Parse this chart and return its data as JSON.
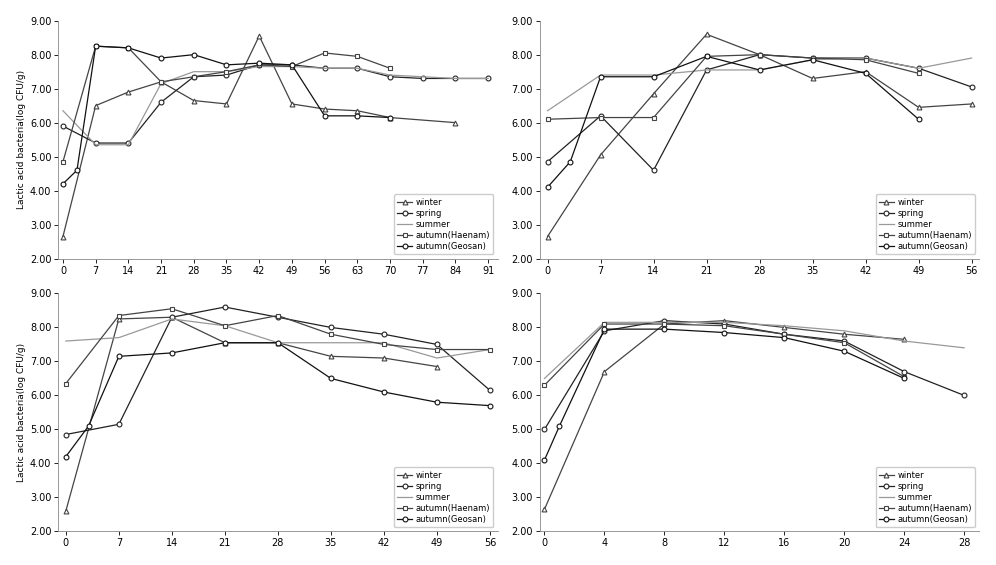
{
  "plots": [
    {
      "row": 0,
      "col": 0,
      "xticks": [
        0,
        7,
        14,
        21,
        28,
        35,
        42,
        49,
        56,
        63,
        70,
        77,
        84,
        91
      ],
      "xlim": [
        -1,
        93
      ],
      "ylim": [
        2.0,
        9.0
      ],
      "yticks": [
        2.0,
        3.0,
        4.0,
        5.0,
        6.0,
        7.0,
        8.0,
        9.0
      ],
      "series": [
        {
          "label": "winter",
          "marker": "^",
          "color": "#444444",
          "x": [
            0,
            7,
            14,
            21,
            28,
            35,
            42,
            49,
            56,
            63,
            70,
            84
          ],
          "y": [
            2.65,
            6.5,
            6.9,
            7.2,
            6.65,
            6.55,
            8.55,
            6.55,
            6.4,
            6.35,
            6.15,
            6.0
          ]
        },
        {
          "label": "spring",
          "marker": "o",
          "color": "#222222",
          "x": [
            0,
            7,
            14,
            21,
            28,
            35,
            42,
            49,
            56,
            63,
            70,
            77,
            84,
            91
          ],
          "y": [
            5.9,
            5.4,
            5.4,
            6.6,
            7.35,
            7.4,
            7.7,
            7.7,
            7.6,
            7.6,
            7.35,
            7.3,
            7.3,
            7.3
          ]
        },
        {
          "label": "summer",
          "marker": "",
          "color": "#999999",
          "x": [
            0,
            7,
            14,
            21,
            28,
            35,
            42,
            49,
            56,
            63,
            70,
            77,
            84,
            91
          ],
          "y": [
            6.35,
            5.35,
            5.35,
            7.15,
            7.5,
            7.5,
            7.65,
            7.65,
            7.6,
            7.6,
            7.4,
            7.35,
            7.3,
            7.3
          ]
        },
        {
          "label": "autumn(Haenam)",
          "marker": "s",
          "color": "#444444",
          "x": [
            0,
            7,
            14,
            21,
            28,
            35,
            42,
            49,
            56,
            63,
            70
          ],
          "y": [
            4.85,
            8.25,
            8.2,
            7.2,
            7.35,
            7.5,
            7.7,
            7.65,
            8.05,
            7.95,
            7.6
          ]
        },
        {
          "label": "autumn(Geosan)",
          "marker": "o",
          "color": "#111111",
          "x": [
            0,
            3,
            7,
            14,
            21,
            28,
            35,
            42,
            49,
            56,
            63,
            70
          ],
          "y": [
            4.2,
            4.6,
            8.25,
            8.2,
            7.9,
            8.0,
            7.7,
            7.75,
            7.7,
            6.2,
            6.2,
            6.15
          ]
        }
      ]
    },
    {
      "row": 0,
      "col": 1,
      "xticks": [
        0,
        7,
        14,
        21,
        28,
        35,
        42,
        49,
        56
      ],
      "xlim": [
        -1,
        57
      ],
      "ylim": [
        2.0,
        9.0
      ],
      "yticks": [
        2.0,
        3.0,
        4.0,
        5.0,
        6.0,
        7.0,
        8.0,
        9.0
      ],
      "series": [
        {
          "label": "winter",
          "marker": "^",
          "color": "#444444",
          "x": [
            0,
            7,
            14,
            21,
            28,
            35,
            42,
            49,
            56
          ],
          "y": [
            2.65,
            5.05,
            6.85,
            8.6,
            8.0,
            7.3,
            7.5,
            6.45,
            6.55
          ]
        },
        {
          "label": "spring",
          "marker": "o",
          "color": "#222222",
          "x": [
            0,
            7,
            14,
            21,
            28,
            35,
            42,
            49,
            56
          ],
          "y": [
            4.85,
            6.2,
            4.6,
            7.55,
            8.0,
            7.9,
            7.9,
            7.6,
            7.05
          ]
        },
        {
          "label": "summer",
          "marker": "",
          "color": "#999999",
          "x": [
            0,
            7,
            14,
            21,
            28,
            35,
            42,
            49,
            56
          ],
          "y": [
            6.35,
            7.4,
            7.4,
            7.55,
            7.55,
            7.85,
            7.9,
            7.6,
            7.9
          ]
        },
        {
          "label": "autumn(Haenam)",
          "marker": "s",
          "color": "#444444",
          "x": [
            0,
            7,
            14,
            21,
            28,
            35,
            42,
            49
          ],
          "y": [
            6.1,
            6.15,
            6.15,
            7.95,
            8.0,
            7.9,
            7.85,
            7.45
          ]
        },
        {
          "label": "autumn(Geosan)",
          "marker": "o",
          "color": "#111111",
          "x": [
            0,
            3,
            7,
            14,
            21,
            28,
            35,
            42,
            49
          ],
          "y": [
            4.1,
            4.85,
            7.35,
            7.35,
            7.95,
            7.55,
            7.85,
            7.45,
            6.1
          ]
        }
      ]
    },
    {
      "row": 1,
      "col": 0,
      "xticks": [
        0,
        7,
        14,
        21,
        28,
        35,
        42,
        49,
        56
      ],
      "xlim": [
        -1,
        57
      ],
      "ylim": [
        2.0,
        9.0
      ],
      "yticks": [
        2.0,
        3.0,
        4.0,
        5.0,
        6.0,
        7.0,
        8.0,
        9.0
      ],
      "series": [
        {
          "label": "winter",
          "marker": "^",
          "color": "#444444",
          "x": [
            0,
            7,
            14,
            21,
            28,
            35,
            42,
            49
          ],
          "y": [
            2.6,
            8.25,
            8.3,
            7.55,
            7.55,
            7.15,
            7.1,
            6.85
          ]
        },
        {
          "label": "spring",
          "marker": "o",
          "color": "#222222",
          "x": [
            0,
            7,
            14,
            21,
            28,
            35,
            42,
            49,
            56
          ],
          "y": [
            4.85,
            5.15,
            8.3,
            8.6,
            8.3,
            8.0,
            7.8,
            7.5,
            6.15
          ]
        },
        {
          "label": "summer",
          "marker": "",
          "color": "#999999",
          "x": [
            0,
            7,
            14,
            21,
            28,
            35,
            42,
            49,
            56
          ],
          "y": [
            7.6,
            7.7,
            8.25,
            8.05,
            7.55,
            7.55,
            7.55,
            7.1,
            7.35
          ]
        },
        {
          "label": "autumn(Haenam)",
          "marker": "s",
          "color": "#444444",
          "x": [
            0,
            7,
            14,
            21,
            28,
            35,
            42,
            49,
            56
          ],
          "y": [
            6.35,
            8.35,
            8.55,
            8.05,
            8.35,
            7.8,
            7.5,
            7.35,
            7.35
          ]
        },
        {
          "label": "autumn(Geosan)",
          "marker": "o",
          "color": "#111111",
          "x": [
            0,
            3,
            7,
            14,
            21,
            28,
            35,
            42,
            49,
            56
          ],
          "y": [
            4.2,
            5.1,
            7.15,
            7.25,
            7.55,
            7.55,
            6.5,
            6.1,
            5.8,
            5.7
          ]
        }
      ]
    },
    {
      "row": 1,
      "col": 1,
      "xticks": [
        0,
        4,
        8,
        12,
        16,
        20,
        24,
        28
      ],
      "xlim": [
        -0.3,
        29
      ],
      "ylim": [
        2.0,
        9.0
      ],
      "yticks": [
        2.0,
        3.0,
        4.0,
        5.0,
        6.0,
        7.0,
        8.0,
        9.0
      ],
      "series": [
        {
          "label": "winter",
          "marker": "^",
          "color": "#444444",
          "x": [
            0,
            4,
            8,
            12,
            16,
            20,
            24
          ],
          "y": [
            2.65,
            6.7,
            8.1,
            8.2,
            8.0,
            7.8,
            7.65
          ]
        },
        {
          "label": "spring",
          "marker": "o",
          "color": "#222222",
          "x": [
            0,
            4,
            8,
            12,
            16,
            20,
            24,
            28
          ],
          "y": [
            5.0,
            7.9,
            8.2,
            8.1,
            7.8,
            7.6,
            6.7,
            6.0
          ]
        },
        {
          "label": "summer",
          "marker": "",
          "color": "#999999",
          "x": [
            0,
            4,
            8,
            12,
            16,
            20,
            24,
            28
          ],
          "y": [
            6.5,
            8.15,
            8.15,
            8.15,
            8.05,
            7.9,
            7.6,
            7.4
          ]
        },
        {
          "label": "autumn(Haenam)",
          "marker": "s",
          "color": "#444444",
          "x": [
            0,
            4,
            8,
            12,
            16,
            20,
            24
          ],
          "y": [
            6.3,
            8.1,
            8.1,
            8.05,
            7.8,
            7.55,
            6.55
          ]
        },
        {
          "label": "autumn(Geosan)",
          "marker": "o",
          "color": "#111111",
          "x": [
            0,
            1,
            4,
            8,
            12,
            16,
            20,
            24
          ],
          "y": [
            4.1,
            5.1,
            7.95,
            7.95,
            7.85,
            7.7,
            7.3,
            6.5
          ]
        }
      ]
    }
  ],
  "ylabel": "Lactic acid bacteria(log CFU/g)",
  "background_color": "#ffffff",
  "legend_labels": [
    "winter",
    "spring",
    "summer",
    "autumn(Haenam)",
    "autumn(Geosan)"
  ]
}
